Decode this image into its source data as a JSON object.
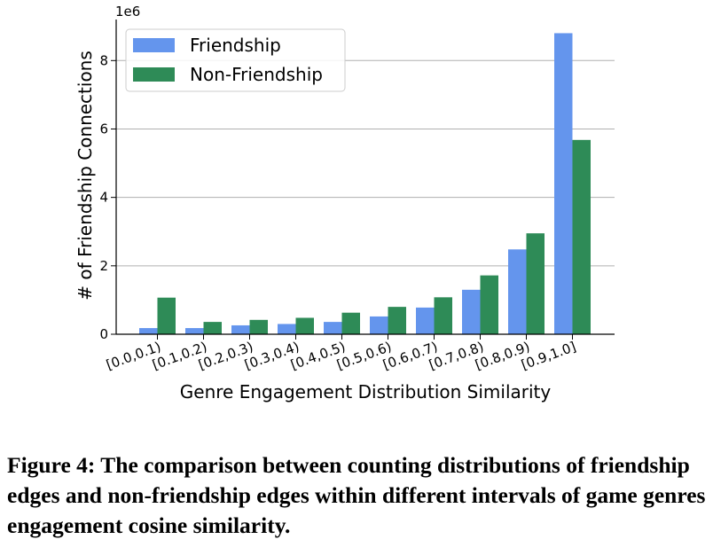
{
  "chart_data": {
    "type": "bar",
    "categories": [
      "[0.0,0.1)",
      "[0.1,0.2)",
      "[0.2,0.3)",
      "[0.3,0.4)",
      "[0.4,0.5)",
      "[0.5,0.6)",
      "[0.6,0.7)",
      "[0.7,0.8)",
      "[0.8,0.9)",
      "[0.9,1.0]"
    ],
    "series": [
      {
        "name": "Friendship",
        "color": "#6495ed",
        "values": [
          0.18,
          0.18,
          0.26,
          0.3,
          0.36,
          0.52,
          0.78,
          1.3,
          2.48,
          8.8
        ]
      },
      {
        "name": "Non-Friendship",
        "color": "#2e8b57",
        "values": [
          1.07,
          0.36,
          0.42,
          0.48,
          0.63,
          0.8,
          1.08,
          1.72,
          2.95,
          5.68
        ]
      }
    ],
    "xlabel": "Genre Engagement Distribution Similarity",
    "ylabel": "# of Friendship Connections",
    "y_scale_label": "1e6",
    "ylim": [
      0,
      9.2
    ],
    "yticks": [
      0,
      2,
      4,
      6,
      8
    ],
    "grid": "horizontal",
    "legend": "top-left"
  },
  "caption": "Figure 4: The comparison between counting distributions of friendship edges and non-friendship edges within different intervals of game genres engagement cosine similarity."
}
